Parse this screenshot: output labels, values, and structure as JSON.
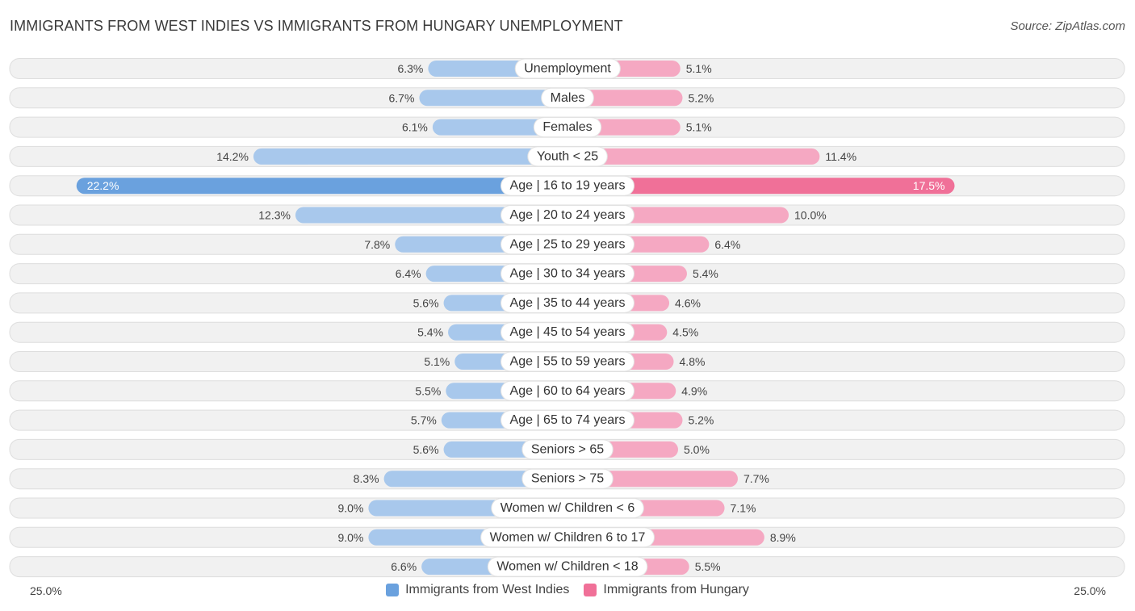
{
  "title": "IMMIGRANTS FROM WEST INDIES VS IMMIGRANTS FROM HUNGARY UNEMPLOYMENT",
  "source": "Source: ZipAtlas.com",
  "colors": {
    "west_indies": "#6aa1de",
    "west_indies_light": "#a8c8ec",
    "hungary": "#f07098",
    "hungary_light": "#f5a8c2",
    "row_bg": "#f1f1f1",
    "row_border": "#dedede"
  },
  "chart_data": {
    "type": "bar",
    "orientation": "horizontal-diverging",
    "title": "IMMIGRANTS FROM WEST INDIES VS IMMIGRANTS FROM HUNGARY UNEMPLOYMENT",
    "xlim": [
      0,
      25.0
    ],
    "axis_left_label": "25.0%",
    "axis_right_label": "25.0%",
    "legend_position": "bottom-center",
    "categories": [
      "Unemployment",
      "Males",
      "Females",
      "Youth < 25",
      "Age | 16 to 19 years",
      "Age | 20 to 24 years",
      "Age | 25 to 29 years",
      "Age | 30 to 34 years",
      "Age | 35 to 44 years",
      "Age | 45 to 54 years",
      "Age | 55 to 59 years",
      "Age | 60 to 64 years",
      "Age | 65 to 74 years",
      "Seniors > 65",
      "Seniors > 75",
      "Women w/ Children < 6",
      "Women w/ Children 6 to 17",
      "Women w/ Children < 18"
    ],
    "series": [
      {
        "name": "Immigrants from West Indies",
        "side": "left",
        "values": [
          6.3,
          6.7,
          6.1,
          14.2,
          22.2,
          12.3,
          7.8,
          6.4,
          5.6,
          5.4,
          5.1,
          5.5,
          5.7,
          5.6,
          8.3,
          9.0,
          9.0,
          6.6
        ],
        "labels": [
          "6.3%",
          "6.7%",
          "6.1%",
          "14.2%",
          "22.2%",
          "12.3%",
          "7.8%",
          "6.4%",
          "5.6%",
          "5.4%",
          "5.1%",
          "5.5%",
          "5.7%",
          "5.6%",
          "8.3%",
          "9.0%",
          "9.0%",
          "6.6%"
        ]
      },
      {
        "name": "Immigrants from Hungary",
        "side": "right",
        "values": [
          5.1,
          5.2,
          5.1,
          11.4,
          17.5,
          10.0,
          6.4,
          5.4,
          4.6,
          4.5,
          4.8,
          4.9,
          5.2,
          5.0,
          7.7,
          7.1,
          8.9,
          5.5
        ],
        "labels": [
          "5.1%",
          "5.2%",
          "5.1%",
          "11.4%",
          "17.5%",
          "10.0%",
          "6.4%",
          "5.4%",
          "4.6%",
          "4.5%",
          "4.8%",
          "4.9%",
          "5.2%",
          "5.0%",
          "7.7%",
          "7.1%",
          "8.9%",
          "5.5%"
        ]
      }
    ]
  },
  "legend": {
    "west_indies_label": "Immigrants from West Indies",
    "hungary_label": "Immigrants from Hungary"
  }
}
